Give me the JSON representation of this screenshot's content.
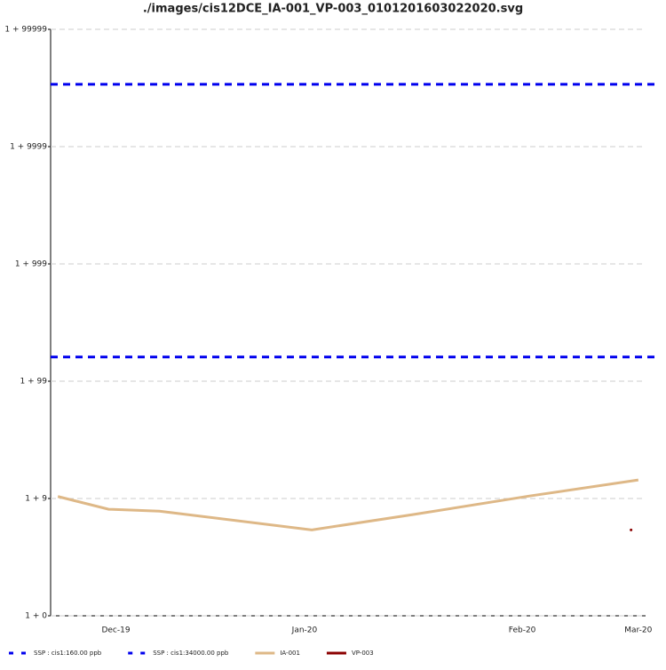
{
  "chart_data": {
    "type": "line",
    "title": "./images/cis12DCE_IA-001_VP-003_0101201603022020.svg",
    "log_scale": "1+v",
    "grid": true,
    "legend": "bottom-left",
    "xlim": [
      "2019-12-12",
      "2020-03-03"
    ],
    "xticks": [
      {
        "value": "2019-12-21",
        "label": "Dec-19"
      },
      {
        "value": "2020-01-16",
        "label": "Jan-20"
      },
      {
        "value": "2020-02-15",
        "label": "Feb-20"
      },
      {
        "value": "2020-03-02",
        "label": "Mar-20"
      }
    ],
    "ylim": [
      0,
      99999
    ],
    "yticks": [
      {
        "value": 0,
        "label": "1 + 0"
      },
      {
        "value": 9,
        "label": "1 + 9"
      },
      {
        "value": 99,
        "label": "1 + 99"
      },
      {
        "value": 999,
        "label": "1 + 999"
      },
      {
        "value": 9999,
        "label": "1 + 9999"
      },
      {
        "value": 99999,
        "label": "1 + 99999"
      }
    ],
    "hlines": [
      {
        "name": "SSP : cis1:160.00 ppb",
        "value": 160,
        "color": "#0000ee"
      },
      {
        "name": "SSP : cis1:34000.00 ppb",
        "value": 34000,
        "color": "#0000ee"
      }
    ],
    "series": [
      {
        "name": "IA-001",
        "color": "#deb887",
        "x": [
          "2019-12-13",
          "2019-12-20",
          "2019-12-27",
          "2020-01-17",
          "2020-01-31",
          "2020-02-16",
          "2020-03-02"
        ],
        "values": [
          9.4,
          7.1,
          6.8,
          4.4,
          6.3,
          9.5,
          13.4
        ]
      },
      {
        "name": "VP-003",
        "color": "#8b0000",
        "x": [
          "2020-03-01"
        ],
        "values": [
          4.4
        ]
      }
    ]
  }
}
